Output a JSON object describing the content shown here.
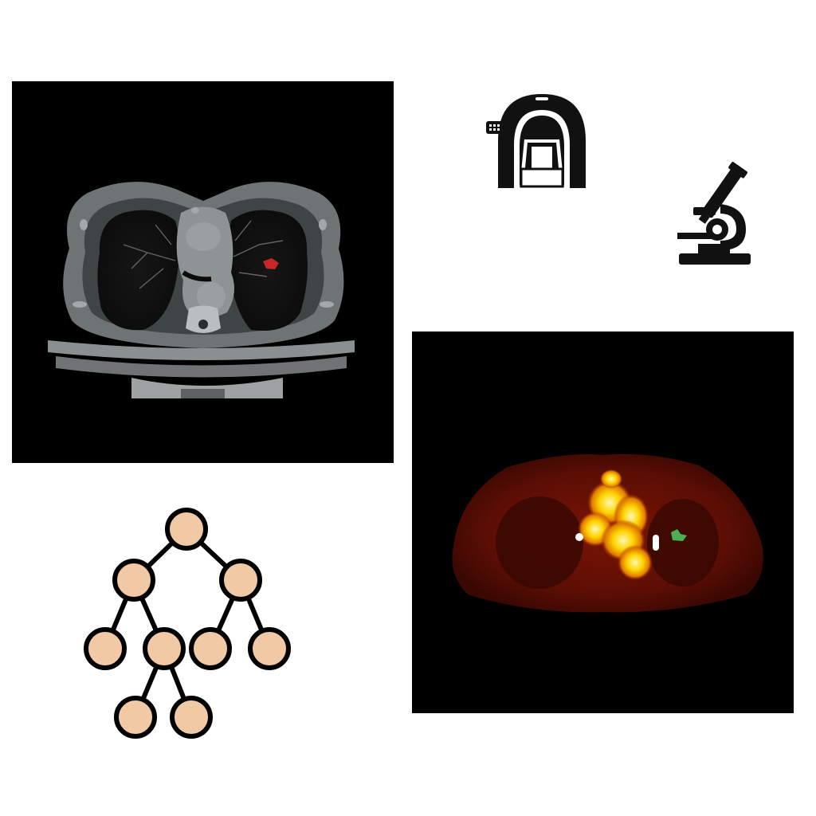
{
  "figure": {
    "panels": [
      {
        "id": "ct",
        "label": "",
        "lesion_color": "#c62828"
      },
      {
        "id": "pet",
        "label": "",
        "lesion_color": "#4caf50"
      }
    ],
    "icons": [
      {
        "name": "ct-scanner-icon"
      },
      {
        "name": "microscope-icon"
      },
      {
        "name": "decision-tree-icon"
      }
    ],
    "tree": {
      "node_fill": "#f2c9a5",
      "node_stroke": "#000000",
      "nodes": [
        {
          "id": "root"
        },
        {
          "id": "n1"
        },
        {
          "id": "n2"
        },
        {
          "id": "n3"
        },
        {
          "id": "n4"
        },
        {
          "id": "n5"
        },
        {
          "id": "n6"
        },
        {
          "id": "n7"
        },
        {
          "id": "n8"
        }
      ],
      "edges": [
        [
          "root",
          "n1"
        ],
        [
          "root",
          "n2"
        ],
        [
          "n1",
          "n3"
        ],
        [
          "n1",
          "n4"
        ],
        [
          "n2",
          "n5"
        ],
        [
          "n2",
          "n6"
        ],
        [
          "n4",
          "n7"
        ],
        [
          "n4",
          "n8"
        ]
      ]
    }
  }
}
